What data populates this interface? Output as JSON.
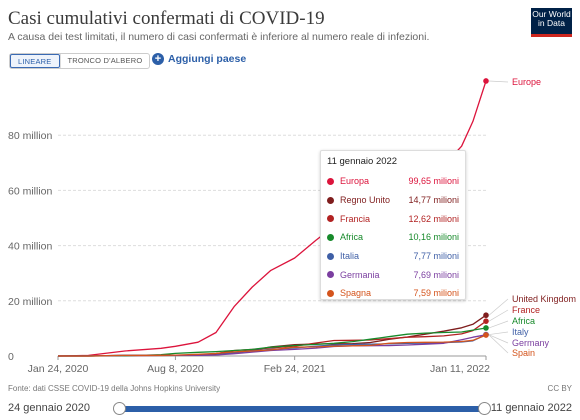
{
  "title": "Casi cumulativi confermati di COVID-19",
  "subtitle": "A causa dei test limitati, il numero di casi confermati è inferiore al numero reale di infezioni.",
  "logo": {
    "line1": "Our World",
    "line2": "in Data"
  },
  "tabs": [
    {
      "label": "LINEARE",
      "active": true
    },
    {
      "label": "TRONCO D'ALBERO",
      "active": false
    }
  ],
  "add_country": {
    "icon": "plus-circle-icon",
    "label": "Aggiungi paese"
  },
  "footer": {
    "source": "Fonte: dati CSSE COVID-19 della Johns Hopkins University",
    "license": "CC BY"
  },
  "timeline": {
    "start": "24 gennaio 2020",
    "end": "11 gennaio 2022"
  },
  "tooltip": {
    "date": "11 gennaio 2022",
    "rows": [
      {
        "name": "Europa",
        "value": "99,65 milioni",
        "color": "#dc143c"
      },
      {
        "name": "Regno Unito",
        "value": "14,77 milioni",
        "color": "#7f1d1d"
      },
      {
        "name": "Francia",
        "value": "12,62 milioni",
        "color": "#b22222"
      },
      {
        "name": "Africa",
        "value": "10,16 milioni",
        "color": "#178a2b"
      },
      {
        "name": "Italia",
        "value": "7,77 milioni",
        "color": "#3f5fa6"
      },
      {
        "name": "Germania",
        "value": "7,69 milioni",
        "color": "#7b3fa0"
      },
      {
        "name": "Spagna",
        "value": "7,59 milioni",
        "color": "#d4541c"
      }
    ]
  },
  "chart_data": {
    "type": "line",
    "title": "Casi cumulativi confermati di COVID-19",
    "x_unit": "date",
    "x_ticks": [
      "Jan 24, 2020",
      "Aug 8, 2020",
      "Feb 24, 2021",
      "Jan 11, 2022"
    ],
    "y_ticks": [
      "0",
      "20 million",
      "40 million",
      "60 million",
      "80 million"
    ],
    "ylim": [
      0,
      100
    ],
    "y_unit": "million",
    "grid": true,
    "x": [
      "2020-01-24",
      "2020-03-15",
      "2020-05-15",
      "2020-07-15",
      "2020-08-08",
      "2020-09-15",
      "2020-10-15",
      "2020-11-15",
      "2020-12-15",
      "2021-01-15",
      "2021-02-24",
      "2021-04-01",
      "2021-05-01",
      "2021-06-01",
      "2021-07-01",
      "2021-08-01",
      "2021-09-01",
      "2021-10-01",
      "2021-11-01",
      "2021-12-01",
      "2021-12-20",
      "2022-01-11"
    ],
    "series": [
      {
        "name": "Europe",
        "color": "#dc143c",
        "values": [
          0,
          0.2,
          1.8,
          2.8,
          3.5,
          5,
          8.5,
          18,
          25,
          31,
          35.5,
          42,
          47,
          50,
          51.5,
          55,
          59,
          62.5,
          69,
          76,
          85,
          99.65
        ]
      },
      {
        "name": "United Kingdom",
        "color": "#7f1d1d",
        "values": [
          0,
          0,
          0.25,
          0.29,
          0.31,
          0.37,
          0.7,
          1.4,
          2.0,
          3.3,
          4.1,
          4.35,
          4.42,
          4.5,
          4.9,
          6.0,
          6.9,
          7.9,
          9.0,
          10.2,
          11.5,
          14.77
        ]
      },
      {
        "name": "France",
        "color": "#b22222",
        "values": [
          0,
          0,
          0.14,
          0.17,
          0.2,
          0.35,
          0.85,
          2.0,
          2.4,
          2.9,
          3.6,
          4.7,
          5.6,
          5.7,
          5.8,
          6.3,
          6.8,
          7.0,
          7.3,
          8.0,
          9.2,
          12.62
        ]
      },
      {
        "name": "Africa",
        "color": "#178a2b",
        "values": [
          0,
          0,
          0.08,
          0.5,
          0.95,
          1.35,
          1.6,
          2.0,
          2.4,
          3.2,
          3.8,
          4.2,
          4.6,
          5.2,
          6.1,
          7.0,
          7.9,
          8.3,
          8.5,
          8.7,
          9.4,
          10.16
        ]
      },
      {
        "name": "Italy",
        "color": "#3f5fa6",
        "values": [
          0,
          0.02,
          0.22,
          0.24,
          0.25,
          0.29,
          0.39,
          1.2,
          1.9,
          2.4,
          2.9,
          3.6,
          4.0,
          4.22,
          4.26,
          4.39,
          4.55,
          4.68,
          4.84,
          5.08,
          5.5,
          7.77
        ]
      },
      {
        "name": "Germany",
        "color": "#7b3fa0",
        "values": [
          0,
          0.01,
          0.18,
          0.2,
          0.21,
          0.27,
          0.35,
          0.82,
          1.4,
          2.0,
          2.4,
          2.85,
          3.45,
          3.7,
          3.73,
          3.78,
          3.97,
          4.27,
          4.6,
          5.9,
          6.8,
          7.69
        ]
      },
      {
        "name": "Spain",
        "color": "#d4541c",
        "values": [
          0,
          0.01,
          0.23,
          0.26,
          0.31,
          0.62,
          0.95,
          1.5,
          1.8,
          2.2,
          3.2,
          3.3,
          3.55,
          3.7,
          3.85,
          4.6,
          4.9,
          4.98,
          5.02,
          5.25,
          5.7,
          7.59
        ]
      }
    ]
  }
}
